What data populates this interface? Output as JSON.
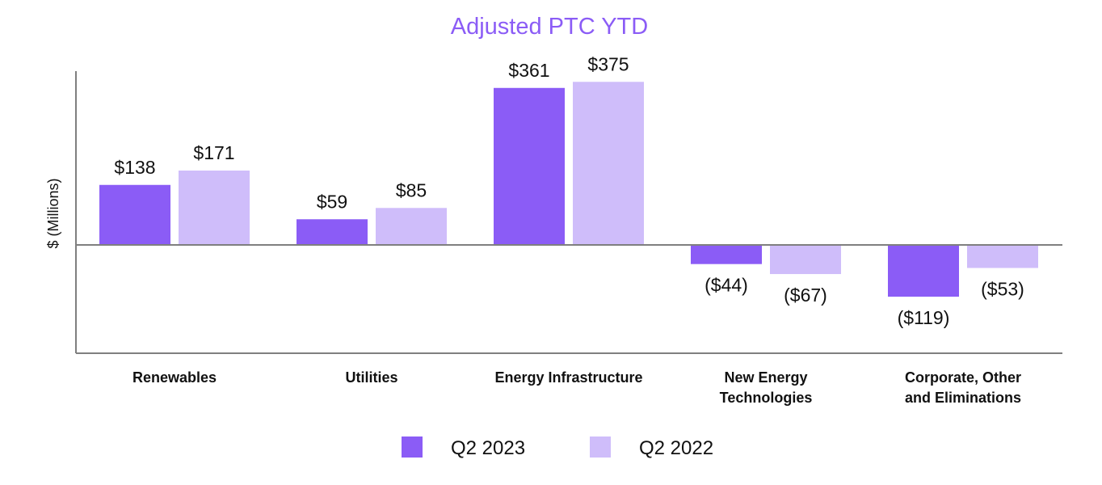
{
  "chart_data": {
    "type": "bar",
    "title": "Adjusted PTC YTD",
    "xlabel": "",
    "ylabel": "$ (Millions)",
    "ylim": [
      -180,
      400
    ],
    "grid": false,
    "legend_position": "bottom-center",
    "categories": [
      [
        "Renewables"
      ],
      [
        "Utilities"
      ],
      [
        "Energy Infrastructure"
      ],
      [
        "New Energy",
        "Technologies"
      ],
      [
        "Corporate, Other",
        "and Eliminations"
      ]
    ],
    "series": [
      {
        "name": "Q2 2023",
        "values": [
          138,
          59,
          361,
          -44,
          -119
        ],
        "labels": [
          "$138",
          "$59",
          "$361",
          "($44)",
          "($119)"
        ]
      },
      {
        "name": "Q2 2022",
        "values": [
          171,
          85,
          375,
          -67,
          -53
        ],
        "labels": [
          "$171",
          "$85",
          "$375",
          "($67)",
          "($53)"
        ]
      }
    ]
  },
  "colors": {
    "title": "#8b5cf6",
    "series": [
      "#8b5cf6",
      "#cfbdfa"
    ],
    "axis": "#7f7f7f"
  }
}
